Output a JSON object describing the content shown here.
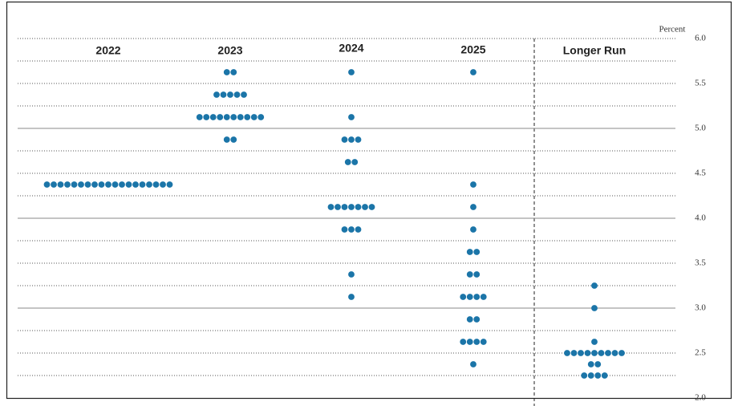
{
  "chart_data": {
    "type": "dotplot",
    "y_label": "Percent",
    "categories": [
      "2022",
      "2023",
      "2024",
      "2025",
      "Longer Run"
    ],
    "dots": [
      [
        {
          "value": 4.375,
          "count": 19
        }
      ],
      [
        {
          "value": 5.625,
          "count": 2
        },
        {
          "value": 5.375,
          "count": 5
        },
        {
          "value": 5.125,
          "count": 10
        },
        {
          "value": 4.875,
          "count": 2
        }
      ],
      [
        {
          "value": 5.625,
          "count": 1
        },
        {
          "value": 5.125,
          "count": 1
        },
        {
          "value": 4.875,
          "count": 3
        },
        {
          "value": 4.625,
          "count": 2
        },
        {
          "value": 4.125,
          "count": 7
        },
        {
          "value": 3.875,
          "count": 3
        },
        {
          "value": 3.375,
          "count": 1
        },
        {
          "value": 3.125,
          "count": 1
        }
      ],
      [
        {
          "value": 5.625,
          "count": 1
        },
        {
          "value": 4.375,
          "count": 1
        },
        {
          "value": 4.125,
          "count": 1
        },
        {
          "value": 3.875,
          "count": 1
        },
        {
          "value": 3.625,
          "count": 2
        },
        {
          "value": 3.375,
          "count": 2
        },
        {
          "value": 3.125,
          "count": 4
        },
        {
          "value": 2.875,
          "count": 2
        },
        {
          "value": 2.625,
          "count": 4
        },
        {
          "value": 2.375,
          "count": 1
        }
      ],
      [
        {
          "value": 3.25,
          "count": 1
        },
        {
          "value": 3.0,
          "count": 1
        },
        {
          "value": 2.625,
          "count": 1
        },
        {
          "value": 2.5,
          "count": 9
        },
        {
          "value": 2.375,
          "count": 2
        },
        {
          "value": 2.25,
          "count": 4
        }
      ]
    ],
    "color": "#1b75a8",
    "ylim": [
      2.0,
      6.0
    ],
    "yticks": [
      {
        "value": 2.0,
        "label": "2.0"
      },
      2.5,
      {
        "value": 3.0,
        "label": "3.0"
      },
      3.5,
      {
        "value": 4.0,
        "label": "4.0"
      },
      4.5,
      {
        "value": 5.0,
        "label": "5.0"
      },
      5.5,
      {
        "value": 6.0,
        "label": "6.0"
      }
    ],
    "grid": true
  }
}
